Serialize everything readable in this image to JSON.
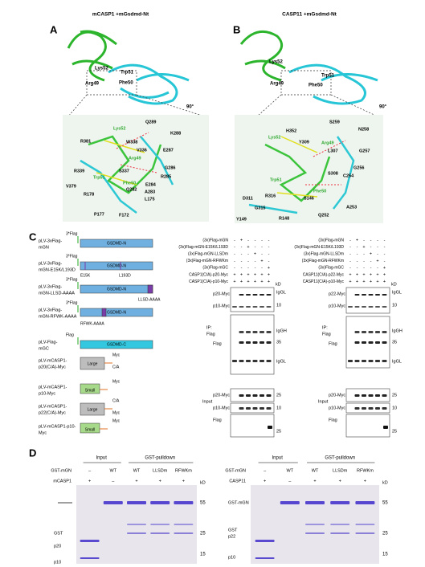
{
  "panel_labels": [
    "A",
    "B",
    "C",
    "D"
  ],
  "panel_a": {
    "title": "mCASP1 +mGsdmd-Nt",
    "structure_labels": [
      "Lys52",
      "Trp51",
      "Arg49",
      "Phe50",
      "90°"
    ],
    "closeup_labels": [
      "Q289",
      "K288",
      "R381",
      "Lys52",
      "W338",
      "V336",
      "E287",
      "Arg49",
      "G286",
      "R285",
      "R339",
      "S337",
      "Trp51",
      "Phe50",
      "V379",
      "Q282",
      "E284",
      "R178",
      "A283",
      "L175",
      "P177",
      "F172"
    ]
  },
  "panel_b": {
    "title": "CASP11 +mGsdmd-Nt",
    "structure_labels": [
      "Lys52",
      "Trp51",
      "Arg49",
      "Phe50",
      "90°"
    ],
    "closeup_labels": [
      "S259",
      "N258",
      "H352",
      "Lys52",
      "Y309",
      "Arg49",
      "L307",
      "G257",
      "G256",
      "C254",
      "S308",
      "Trp51",
      "Phe50",
      "D311",
      "R316",
      "S146",
      "A253",
      "G315",
      "Q252",
      "Y149",
      "R148"
    ]
  },
  "panel_c": {
    "constructs": [
      {
        "tag": "3*Flag",
        "name": [
          "pLV-3xFlag-",
          "mGN"
        ],
        "domain": "GSDMD-N"
      },
      {
        "tag": "3*Flag",
        "name": [
          "pLV-3xFlag-",
          "mGN-E15K/L193D"
        ],
        "domain": "GSDMD-N",
        "sites": [
          "E15K",
          "L193D"
        ]
      },
      {
        "tag": "3*Flag",
        "name": [
          "pLV-3xFlag-",
          "mGN-LLSD-AAAA"
        ],
        "domain": "GSDMD-N",
        "sites": [
          "LLSD-AAAA"
        ]
      },
      {
        "tag": "3*Flag",
        "name": [
          "pLV-3xFlag-",
          "mGN-RFWK-AAAA"
        ],
        "domain": "GSDMD-N",
        "sites": [
          "RFWK-AAAA"
        ]
      },
      {
        "tag": "Flag",
        "name": [
          "pLV-Flag-",
          "mGC"
        ],
        "domain": "GSDMD-C"
      },
      {
        "name": [
          "pLV-mCASP1-",
          "p20(C/A)-Myc"
        ],
        "domain": "Large",
        "sites": [
          "Myc",
          "C/A"
        ]
      },
      {
        "name": [
          "pLV-mCASP1-",
          "p10-Myc"
        ],
        "domain": "Small",
        "sites": [
          "Myc"
        ]
      },
      {
        "name": [
          "pLV-mCASP1-",
          "p22(C/A)-Myc"
        ],
        "domain": "Large",
        "sites": [
          "C/A",
          "Myc"
        ]
      },
      {
        "name": [
          "pLV-mCASP1-p10-",
          "Myc"
        ],
        "domain": "Small",
        "sites": [
          "Myc"
        ]
      }
    ],
    "blot_left": {
      "conditions": [
        {
          "label": "(3x)Flag-mGN",
          "signs": [
            "-",
            "+",
            "-",
            "-",
            "-",
            "-"
          ]
        },
        {
          "label": "(3x)Flag-mGN-E15K/L193D",
          "signs": [
            "-",
            "-",
            "+",
            "-",
            "-",
            "-"
          ]
        },
        {
          "label": "(3x)Flag-mGN-LLSDm",
          "signs": [
            "-",
            "-",
            "-",
            "+",
            "-",
            "-"
          ]
        },
        {
          "label": "(3x)Flag-mGN-RFWKm",
          "signs": [
            "-",
            "-",
            "-",
            "-",
            "+",
            "-"
          ]
        },
        {
          "label": "(3x)Flag-mGC",
          "signs": [
            "-",
            "-",
            "-",
            "-",
            "-",
            "+"
          ]
        },
        {
          "label": "CASP1(C/A)-p20-Myc",
          "signs": [
            "+",
            "+",
            "+",
            "+",
            "+",
            "+"
          ]
        },
        {
          "label": "CASP1(C/A)-p10-Myc",
          "signs": [
            "+",
            "+",
            "+",
            "+",
            "+",
            "+"
          ]
        }
      ],
      "kd": "kD",
      "ip": [
        "IP:",
        "Flag"
      ],
      "input": "Input",
      "ip_rows": [
        "p20-Myc",
        "p10-Myc",
        "Flag"
      ],
      "input_rows": [
        "p20-Myc",
        "p10-Myc",
        "Flag"
      ],
      "markers": [
        "IgGL",
        "10",
        "IgGH",
        "35",
        "IgGL",
        "25",
        "10",
        "25"
      ]
    },
    "blot_right": {
      "conditions": [
        {
          "label": "(3x)Flag-mGN",
          "signs": [
            "-",
            "+",
            "-",
            "-",
            "-",
            "-"
          ]
        },
        {
          "label": "(3x)Flag-mGN-E15K/L193D",
          "signs": [
            "-",
            "-",
            "+",
            "-",
            "-",
            "-"
          ]
        },
        {
          "label": "(3x)Flag-mGN-LLSDm",
          "signs": [
            "-",
            "-",
            "-",
            "+",
            "-",
            "-"
          ]
        },
        {
          "label": "(3x)Flag-mGN-RFWKm",
          "signs": [
            "-",
            "-",
            "-",
            "-",
            "+",
            "-"
          ]
        },
        {
          "label": "(3x)Flag-mGC",
          "signs": [
            "-",
            "-",
            "-",
            "-",
            "-",
            "+"
          ]
        },
        {
          "label": "CASP11(C/A)-p22-Myc",
          "signs": [
            "+",
            "+",
            "+",
            "+",
            "+",
            "+"
          ]
        },
        {
          "label": "CASP11(C/A)-p10-Myc",
          "signs": [
            "+",
            "+",
            "+",
            "+",
            "+",
            "+"
          ]
        }
      ],
      "kd": "kD",
      "ip": [
        "IP:",
        "Flag"
      ],
      "input": "Input",
      "ip_rows": [
        "p22-Myc",
        "p10-Myc",
        "Flag"
      ],
      "input_rows": [
        "p20-Myc",
        "p10-Myc",
        "Flag"
      ],
      "markers": [
        "IgGL",
        "10",
        "IgGH",
        "35",
        "IgGL",
        "25",
        "10",
        "25"
      ]
    }
  },
  "panel_d": {
    "gel_left": {
      "headers": [
        "Input",
        "GST-pulldown"
      ],
      "rows": [
        {
          "label": "GST-mGN",
          "signs": [
            "–",
            "WT",
            "WT",
            "LLSDm",
            "RFWKm"
          ]
        },
        {
          "label": "mCASP1",
          "signs": [
            "+",
            "–",
            "+",
            "+",
            "+"
          ]
        }
      ],
      "kd": "kD",
      "markers": [
        "55",
        "25",
        "15"
      ],
      "bands": [
        "GST",
        "p20",
        "p10"
      ]
    },
    "gel_right": {
      "headers": [
        "Input",
        "GST-pulldown"
      ],
      "rows": [
        {
          "label": "GST-mGN",
          "signs": [
            "–",
            "WT",
            "WT",
            "LLSDm",
            "RFWKm"
          ]
        },
        {
          "label": "CASP11",
          "signs": [
            "+",
            "–",
            "+",
            "+",
            "+"
          ]
        }
      ],
      "kd": "kD",
      "markers": [
        "55",
        "25",
        "15"
      ],
      "bands": [
        "GST-mGN",
        "GST",
        "p22",
        "p10"
      ]
    }
  }
}
